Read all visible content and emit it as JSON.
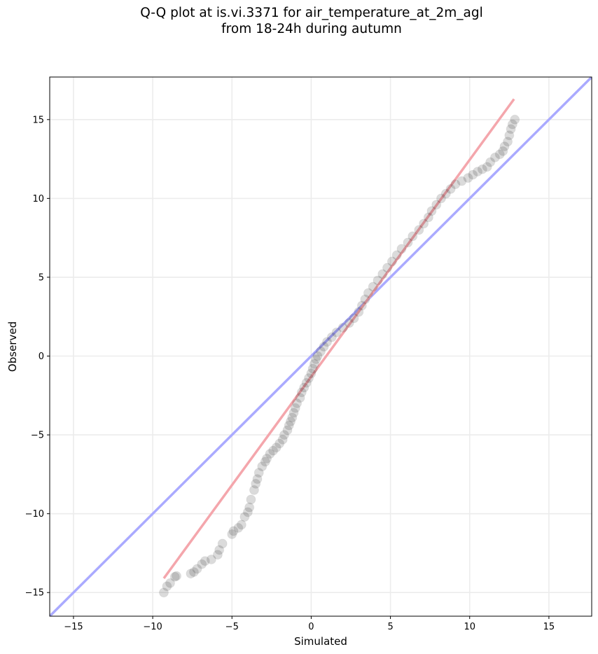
{
  "chart_data": {
    "type": "scatter",
    "title_line1": "Q-Q plot at is.vi.3371 for air_temperature_at_2m_agl",
    "title_line2": "from 18-24h during autumn",
    "xlabel": "Simulated",
    "ylabel": "Observed",
    "xlim": [
      -16.5,
      17.7
    ],
    "ylim": [
      -16.5,
      17.7
    ],
    "x_ticks": [
      -15,
      -10,
      -5,
      0,
      5,
      10,
      15
    ],
    "y_ticks": [
      -15,
      -10,
      -5,
      0,
      5,
      10,
      15
    ],
    "x_tick_labels": [
      "−15",
      "−10",
      "−5",
      "0",
      "5",
      "10",
      "15"
    ],
    "y_tick_labels": [
      "−15",
      "−10",
      "−5",
      "0",
      "5",
      "10",
      "15"
    ],
    "grid": true,
    "identity_line": {
      "color": "#aaaaff",
      "from": [
        -16.5,
        -16.5
      ],
      "to": [
        17.7,
        17.7
      ]
    },
    "fit_line": {
      "color": "#f4a6ac",
      "from": [
        -9.3,
        -14.1
      ],
      "to": [
        12.8,
        16.3
      ]
    },
    "point_color": "#1e1e1e",
    "points": [
      [
        -9.3,
        -15.0
      ],
      [
        -9.1,
        -14.6
      ],
      [
        -8.9,
        -14.4
      ],
      [
        -8.6,
        -14.0
      ],
      [
        -8.5,
        -13.95
      ],
      [
        -7.6,
        -13.8
      ],
      [
        -7.4,
        -13.7
      ],
      [
        -7.2,
        -13.5
      ],
      [
        -6.9,
        -13.2
      ],
      [
        -6.7,
        -13.0
      ],
      [
        -6.3,
        -12.9
      ],
      [
        -5.9,
        -12.6
      ],
      [
        -5.8,
        -12.3
      ],
      [
        -5.6,
        -11.9
      ],
      [
        -5.0,
        -11.3
      ],
      [
        -4.9,
        -11.1
      ],
      [
        -4.6,
        -10.9
      ],
      [
        -4.4,
        -10.7
      ],
      [
        -4.2,
        -10.2
      ],
      [
        -4.0,
        -9.9
      ],
      [
        -3.9,
        -9.6
      ],
      [
        -3.8,
        -9.1
      ],
      [
        -3.6,
        -8.5
      ],
      [
        -3.5,
        -8.1
      ],
      [
        -3.4,
        -7.8
      ],
      [
        -3.3,
        -7.4
      ],
      [
        -3.1,
        -7.0
      ],
      [
        -2.9,
        -6.7
      ],
      [
        -2.8,
        -6.5
      ],
      [
        -2.6,
        -6.2
      ],
      [
        -2.4,
        -6.0
      ],
      [
        -2.2,
        -5.8
      ],
      [
        -2.0,
        -5.55
      ],
      [
        -1.8,
        -5.3
      ],
      [
        -1.7,
        -5.0
      ],
      [
        -1.5,
        -4.7
      ],
      [
        -1.4,
        -4.4
      ],
      [
        -1.3,
        -4.15
      ],
      [
        -1.2,
        -3.9
      ],
      [
        -1.1,
        -3.6
      ],
      [
        -1.0,
        -3.3
      ],
      [
        -0.9,
        -3.0
      ],
      [
        -0.7,
        -2.65
      ],
      [
        -0.6,
        -2.3
      ],
      [
        -0.45,
        -2.0
      ],
      [
        -0.3,
        -1.7
      ],
      [
        -0.15,
        -1.4
      ],
      [
        0.0,
        -1.1
      ],
      [
        0.1,
        -0.8
      ],
      [
        0.2,
        -0.5
      ],
      [
        0.3,
        -0.2
      ],
      [
        0.4,
        0.0
      ],
      [
        0.6,
        0.3
      ],
      [
        0.8,
        0.6
      ],
      [
        1.0,
        0.9
      ],
      [
        1.3,
        1.2
      ],
      [
        1.6,
        1.5
      ],
      [
        2.0,
        1.8
      ],
      [
        2.4,
        2.1
      ],
      [
        2.7,
        2.4
      ],
      [
        3.0,
        2.8
      ],
      [
        3.2,
        3.2
      ],
      [
        3.4,
        3.6
      ],
      [
        3.6,
        4.0
      ],
      [
        3.9,
        4.4
      ],
      [
        4.2,
        4.8
      ],
      [
        4.5,
        5.2
      ],
      [
        4.8,
        5.6
      ],
      [
        5.1,
        6.0
      ],
      [
        5.4,
        6.4
      ],
      [
        5.7,
        6.8
      ],
      [
        6.1,
        7.2
      ],
      [
        6.4,
        7.6
      ],
      [
        6.8,
        8.0
      ],
      [
        7.1,
        8.4
      ],
      [
        7.4,
        8.8
      ],
      [
        7.6,
        9.2
      ],
      [
        7.9,
        9.6
      ],
      [
        8.2,
        10.0
      ],
      [
        8.5,
        10.3
      ],
      [
        8.8,
        10.6
      ],
      [
        9.1,
        10.9
      ],
      [
        9.5,
        11.1
      ],
      [
        9.9,
        11.3
      ],
      [
        10.2,
        11.5
      ],
      [
        10.5,
        11.7
      ],
      [
        10.8,
        11.85
      ],
      [
        11.1,
        12.0
      ],
      [
        11.3,
        12.3
      ],
      [
        11.6,
        12.6
      ],
      [
        11.9,
        12.8
      ],
      [
        12.1,
        13.0
      ],
      [
        12.2,
        13.3
      ],
      [
        12.4,
        13.6
      ],
      [
        12.5,
        14.0
      ],
      [
        12.6,
        14.4
      ],
      [
        12.7,
        14.7
      ],
      [
        12.85,
        15.0
      ]
    ]
  }
}
